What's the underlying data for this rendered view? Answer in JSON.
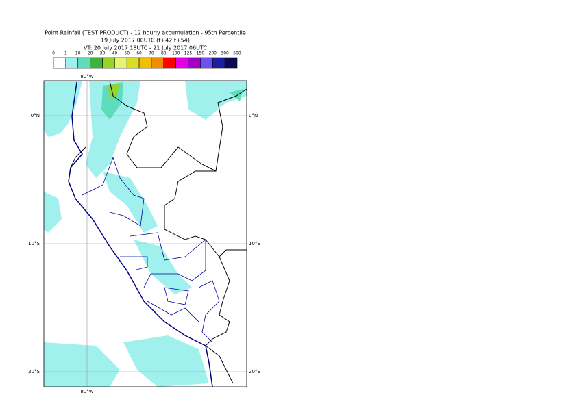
{
  "header": {
    "lines": [
      "Point Rainfall (TEST PRODUCT) - 12 hourly accumulation - 95th Percentile",
      "19 July 2017 00UTC (t+42,t+54)",
      "VT: 20 July 2017 18UTC - 21 July 2017 06UTC"
    ]
  },
  "legend": {
    "labels": [
      "0",
      "1",
      "10",
      "20",
      "30",
      "40",
      "50",
      "60",
      "70",
      "80",
      "100",
      "125",
      "150",
      "200",
      "300",
      "500"
    ],
    "colors": [
      "#ffffff",
      "#a0f0ee",
      "#5edcbc",
      "#3cb43c",
      "#96d428",
      "#e6f56e",
      "#dcdc28",
      "#f0c000",
      "#f08c00",
      "#ff0000",
      "#e600e6",
      "#a000c8",
      "#6e50f0",
      "#1e1ea0",
      "#0a0a50"
    ]
  },
  "map": {
    "top_label": "80°W",
    "bottom_label": "80°W",
    "left_labels": [
      "0°N",
      "10°S",
      "20°S"
    ],
    "right_labels": [
      "0°N",
      "10°S",
      "20°S"
    ]
  }
}
